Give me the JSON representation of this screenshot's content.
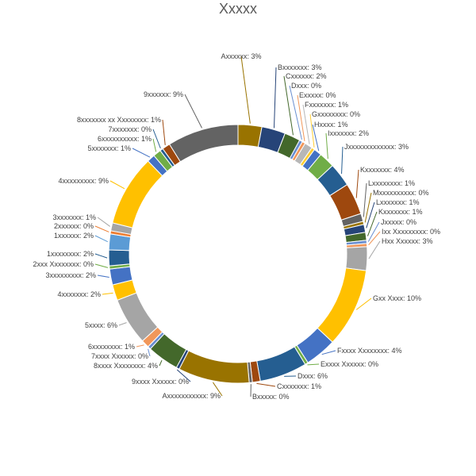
{
  "chart_data": {
    "type": "pie",
    "variant": "donut",
    "title": "Xxxxx",
    "legend": "none",
    "slices": [
      {
        "label": "Axxxxxx",
        "value": 3,
        "pct": "3%",
        "color": "#997300"
      },
      {
        "label": "Bxxxxxxx",
        "value": 3,
        "pct": "3%",
        "color": "#264478"
      },
      {
        "label": "Cxxxxxx",
        "value": 2,
        "pct": "2%",
        "color": "#43682B"
      },
      {
        "label": "Dxxx",
        "value": 0.4,
        "pct": "0%",
        "color": "#698ED0"
      },
      {
        "label": "Exxxxx",
        "value": 0.4,
        "pct": "0%",
        "color": "#F1975A"
      },
      {
        "label": "Fxxxxxxx",
        "value": 1,
        "pct": "1%",
        "color": "#B7B7B7"
      },
      {
        "label": "Gxxxxxxxx",
        "value": 0.4,
        "pct": "0%",
        "color": "#FFCD33"
      },
      {
        "label": "Hxxxx",
        "value": 1,
        "pct": "1%",
        "color": "#4472C4"
      },
      {
        "label": "Ixxxxxxx",
        "value": 2,
        "pct": "2%",
        "color": "#70AD47"
      },
      {
        "label": "Jxxxxxxxxxxxxx",
        "value": 3,
        "pct": "3%",
        "color": "#255E91"
      },
      {
        "label": "Kxxxxxxx",
        "value": 4,
        "pct": "4%",
        "color": "#9E480E"
      },
      {
        "label": "Lxxxxxxxx",
        "value": 1,
        "pct": "1%",
        "color": "#636363"
      },
      {
        "label": "Mxxxxxxxxxx",
        "value": 0.4,
        "pct": "0%",
        "color": "#997300"
      },
      {
        "label": "Lxxxxxxx",
        "value": 1,
        "pct": "1%",
        "color": "#264478"
      },
      {
        "label": "Kxxxxxxx",
        "value": 1,
        "pct": "1%",
        "color": "#43682B"
      },
      {
        "label": "Jxxxxx",
        "value": 0.4,
        "pct": "0%",
        "color": "#698ED0"
      },
      {
        "label": "Ixx Xxxxxxxxx",
        "value": 0.4,
        "pct": "0%",
        "color": "#F1975A"
      },
      {
        "label": "Hxx Xxxxxx",
        "value": 3,
        "pct": "3%",
        "color": "#A5A5A5"
      },
      {
        "label": "Gxx Xxxx",
        "value": 10,
        "pct": "10%",
        "color": "#FFC000"
      },
      {
        "label": "Fxxxx Xxxxxxxx",
        "value": 4,
        "pct": "4%",
        "color": "#4472C4"
      },
      {
        "label": "Exxxx Xxxxxx",
        "value": 0.4,
        "pct": "0%",
        "color": "#70AD47"
      },
      {
        "label": "Dxxx",
        "value": 6,
        "pct": "6%",
        "color": "#255E91"
      },
      {
        "label": "Cxxxxxxx",
        "value": 1,
        "pct": "1%",
        "color": "#9E480E"
      },
      {
        "label": "Bxxxxx",
        "value": 0.4,
        "pct": "0%",
        "color": "#636363"
      },
      {
        "label": "Axxxxxxxxxxx",
        "value": 9,
        "pct": "9%",
        "color": "#997300"
      },
      {
        "label": "9xxxx Xxxxxx",
        "value": 0.4,
        "pct": "0%",
        "color": "#264478"
      },
      {
        "label": "8xxxx Xxxxxxxx",
        "value": 4,
        "pct": "4%",
        "color": "#43682B"
      },
      {
        "label": "7xxxx Xxxxxx",
        "value": 0.4,
        "pct": "0%",
        "color": "#698ED0"
      },
      {
        "label": "6xxxxxxxx",
        "value": 1,
        "pct": "1%",
        "color": "#F1975A"
      },
      {
        "label": "5xxxx",
        "value": 6,
        "pct": "6%",
        "color": "#A5A5A5"
      },
      {
        "label": "4xxxxxxx",
        "value": 2,
        "pct": "2%",
        "color": "#FFC000"
      },
      {
        "label": "3xxxxxxxxx",
        "value": 2,
        "pct": "2%",
        "color": "#4472C4"
      },
      {
        "label": "2xxx Xxxxxxxx",
        "value": 0.4,
        "pct": "0%",
        "color": "#70AD47"
      },
      {
        "label": "1xxxxxxxx",
        "value": 2,
        "pct": "2%",
        "color": "#255E91"
      },
      {
        "label": "1xxxxxx",
        "value": 2,
        "pct": "2%",
        "color": "#5B9BD5"
      },
      {
        "label": "2xxxxxx",
        "value": 0.4,
        "pct": "0%",
        "color": "#ED7D31"
      },
      {
        "label": "3xxxxxxx",
        "value": 1,
        "pct": "1%",
        "color": "#A5A5A5"
      },
      {
        "label": "4xxxxxxxxx",
        "value": 9,
        "pct": "9%",
        "color": "#FFC000"
      },
      {
        "label": "5xxxxxxx",
        "value": 1,
        "pct": "1%",
        "color": "#4472C4"
      },
      {
        "label": "6xxxxxxxxxx",
        "value": 1,
        "pct": "1%",
        "color": "#70AD47"
      },
      {
        "label": "7xxxxxxx",
        "value": 0.4,
        "pct": "0%",
        "color": "#255E91"
      },
      {
        "label": "8xxxxxxx xx Xxxxxxxx",
        "value": 1,
        "pct": "1%",
        "color": "#9E480E"
      },
      {
        "label": "9xxxxxx",
        "value": 9,
        "pct": "9%",
        "color": "#636363"
      }
    ]
  }
}
